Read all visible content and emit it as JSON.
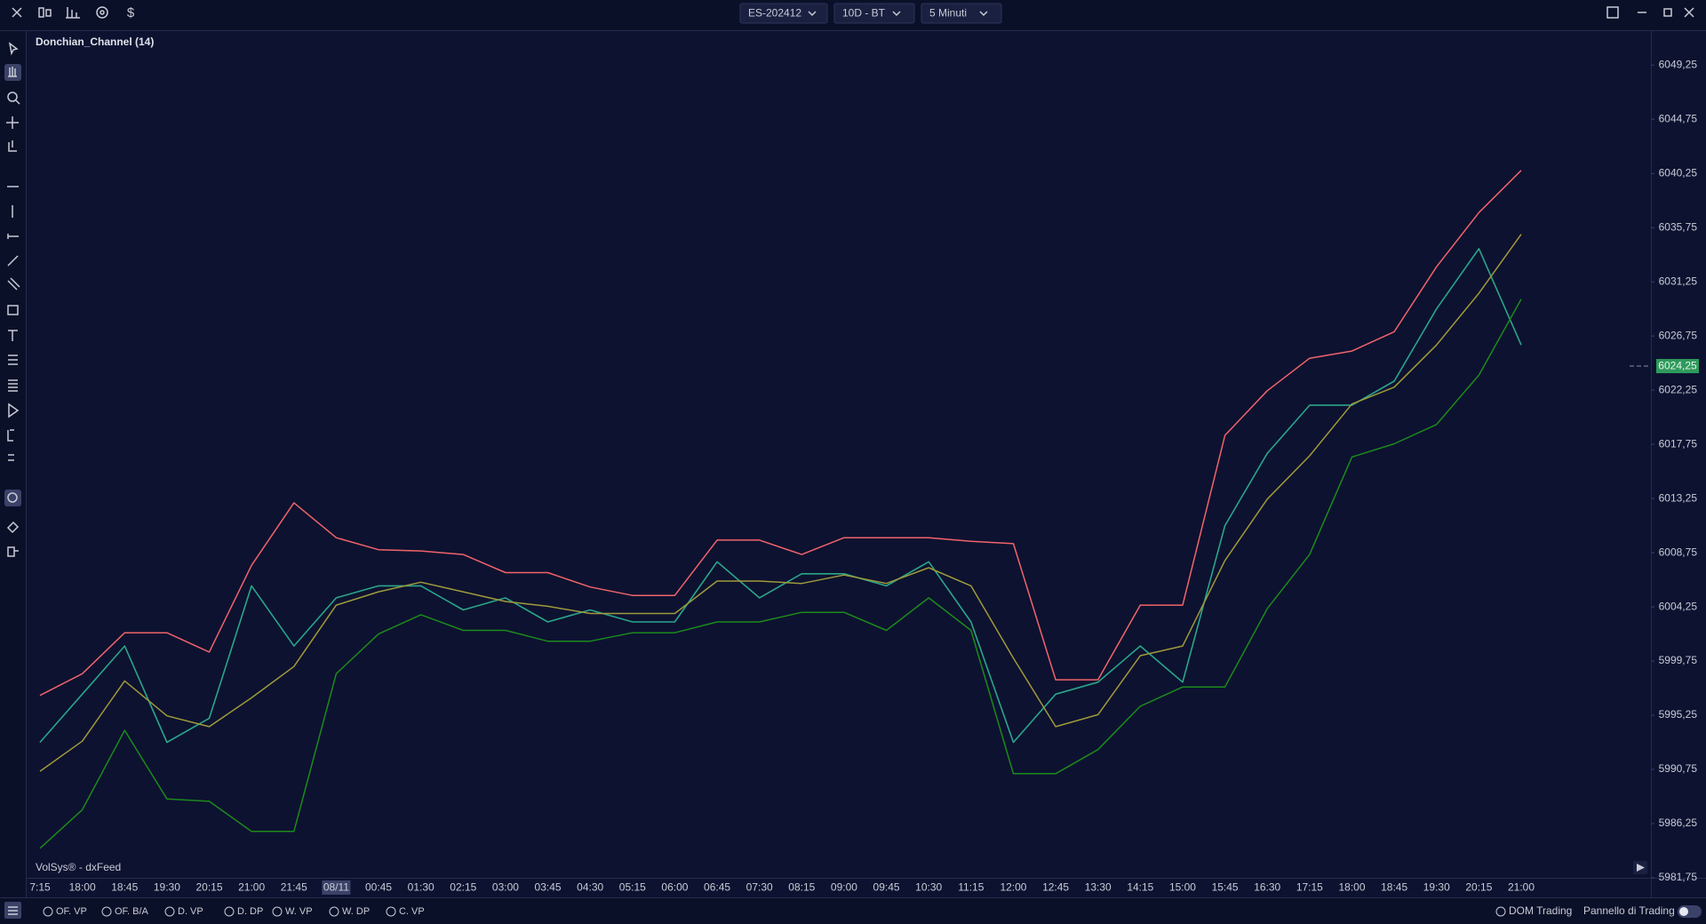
{
  "toolbar": {
    "symbol": "ES-202412",
    "range": "10D - BT",
    "timeframe": "5 Minuti"
  },
  "chart_data": {
    "type": "line",
    "title": "Donchian_Channel (14)",
    "categories": [
      "7:15",
      "18:00",
      "18:45",
      "19:30",
      "20:15",
      "21:00",
      "21:45",
      "08/11",
      "00:45",
      "01:30",
      "02:15",
      "03:00",
      "03:45",
      "04:30",
      "05:15",
      "06:00",
      "06:45",
      "07:30",
      "08:15",
      "09:00",
      "09:45",
      "10:30",
      "11:15",
      "12:00",
      "12:45",
      "13:30",
      "14:15",
      "15:00",
      "15:45",
      "16:30",
      "17:15",
      "18:00",
      "18:45",
      "19:30",
      "20:15",
      "21:00"
    ],
    "series": [
      {
        "color": "#2aa58a",
        "values": [
          5993,
          5997,
          6001,
          5993,
          5995,
          6006,
          6001,
          6005,
          6006,
          6006,
          6004,
          6005,
          6003,
          6004,
          6003,
          6003,
          6008,
          6005,
          6007,
          6007,
          6006,
          6008,
          6003,
          5993,
          5997,
          5998,
          6001,
          5998,
          6011,
          6017,
          6021,
          6021,
          6023,
          6029,
          6034,
          6026
        ]
      },
      {
        "color": "#f0646a",
        "values": [
          5996.9,
          5998.7,
          6002.1,
          6002.1,
          6000.5,
          6007.7,
          6012.9,
          6010.0,
          6009.0,
          6008.9,
          6008.6,
          6007.1,
          6007.1,
          6005.9,
          6005.2,
          6005.2,
          6009.8,
          6009.8,
          6008.6,
          6010.0,
          6010.0,
          6010.0,
          6009.7,
          6009.5,
          5998.2,
          5998.2,
          6004.4,
          6004.4,
          6018.5,
          6022.2,
          6024.9,
          6025.5,
          6027.1,
          6032.5,
          6037.0,
          6040.5
        ]
      },
      {
        "color": "#a09a3a",
        "values": [
          5990.6,
          5993.1,
          5998.1,
          5995.2,
          5994.3,
          5996.7,
          5999.3,
          6004.4,
          6005.5,
          6006.3,
          6005.5,
          6004.7,
          6004.3,
          6003.7,
          6003.7,
          6003.7,
          6006.4,
          6006.4,
          6006.2,
          6006.9,
          6006.2,
          6007.5,
          6006.0,
          6000.0,
          5994.3,
          5995.3,
          6000.2,
          6001.0,
          6008.1,
          6013.2,
          6016.8,
          6021.1,
          6022.5,
          6026.0,
          6030.3,
          6035.2
        ]
      },
      {
        "color": "#1c8a1c",
        "values": [
          5984.2,
          5987.4,
          5994.0,
          5988.3,
          5988.1,
          5985.6,
          5985.6,
          5998.7,
          6002.0,
          6003.6,
          6002.3,
          6002.3,
          6001.4,
          6001.4,
          6002.1,
          6002.1,
          6003.0,
          6003.0,
          6003.8,
          6003.8,
          6002.3,
          6005.0,
          6002.3,
          5990.4,
          5990.4,
          5992.4,
          5996.0,
          5997.6,
          5997.6,
          6004.1,
          6008.6,
          6016.7,
          6017.8,
          6019.4,
          6023.5,
          6029.8
        ]
      }
    ],
    "ylim": [
      5981.75,
      6052.0
    ],
    "yticks": [
      {
        "value": 5981.75,
        "label": "5981,75"
      },
      {
        "value": 5986.25,
        "label": "5986,25"
      },
      {
        "value": 5990.75,
        "label": "5990,75"
      },
      {
        "value": 5995.25,
        "label": "5995,25"
      },
      {
        "value": 5999.75,
        "label": "5999,75"
      },
      {
        "value": 6004.25,
        "label": "6004,25"
      },
      {
        "value": 6008.75,
        "label": "6008,75"
      },
      {
        "value": 6013.25,
        "label": "6013,25"
      },
      {
        "value": 6017.75,
        "label": "6017,75"
      },
      {
        "value": 6022.25,
        "label": "6022,25"
      },
      {
        "value": 6026.75,
        "label": "6026,75"
      },
      {
        "value": 6031.25,
        "label": "6031,25"
      },
      {
        "value": 6035.75,
        "label": "6035,75"
      },
      {
        "value": 6040.25,
        "label": "6040,25"
      },
      {
        "value": 6044.75,
        "label": "6044,75"
      },
      {
        "value": 6049.25,
        "label": "6049,25"
      }
    ],
    "last_price": {
      "value": 6024.25,
      "label": "6024,25",
      "color": "#2e9a5c"
    },
    "grid": false
  },
  "watermark": "VolSys® - dxFeed",
  "bottom_bar": {
    "options": [
      "OF. VP",
      "OF. B/A",
      "D. VP",
      "D. DP",
      "W. VP",
      "W. DP",
      "C. VP"
    ],
    "dom_trading": "DOM Trading",
    "trading_panel": "Pannello di Trading"
  }
}
